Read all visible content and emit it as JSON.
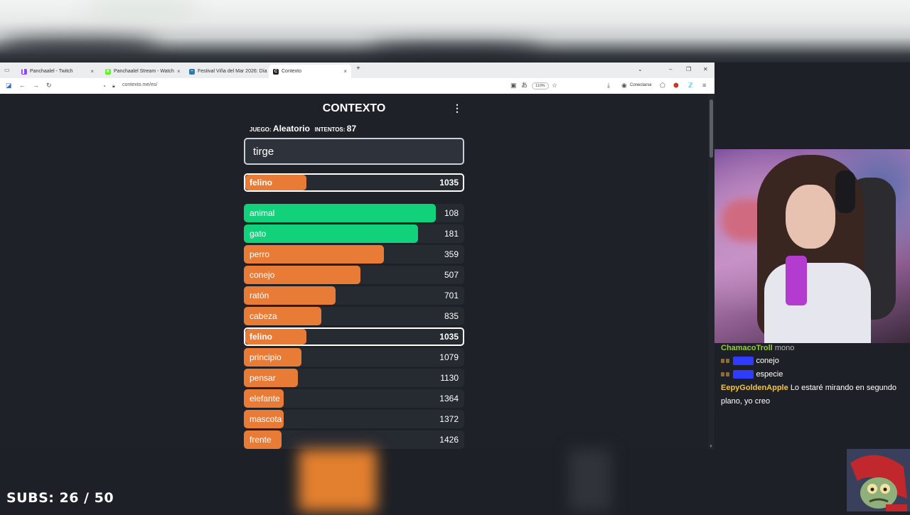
{
  "browser": {
    "tabs": [
      {
        "title": "Panchaalel - Twitch",
        "fav_color": "#9146ff",
        "fav_text": "▌"
      },
      {
        "title": "Panchaalel Stream - Watch",
        "fav_color": "#53fc18",
        "fav_text": "K"
      },
      {
        "title": "Festival Viña del Mar 2026: Día",
        "fav_color": "#2a7ab0",
        "fav_text": "~"
      },
      {
        "title": "Contexto",
        "fav_color": "#222222",
        "fav_text": "C"
      }
    ],
    "url": "contexto.me/es/",
    "zoom": "110%",
    "connect_label": "Conectarse"
  },
  "game": {
    "title": "CONTEXTO",
    "game_label": "JUEGO:",
    "game_value": "Aleatorio",
    "tries_label": "INTENTOS:",
    "tries_value": "87",
    "input_value": "tirge",
    "last_guess": {
      "word": "felino",
      "rank": "1035",
      "fill": 0.28,
      "color": "#e87b35"
    },
    "guesses": [
      {
        "word": "animal",
        "rank": "108",
        "fill": 0.87,
        "color": "#11d17b"
      },
      {
        "word": "gato",
        "rank": "181",
        "fill": 0.79,
        "color": "#11d17b"
      },
      {
        "word": "perro",
        "rank": "359",
        "fill": 0.635,
        "color": "#e87b35"
      },
      {
        "word": "conejo",
        "rank": "507",
        "fill": 0.53,
        "color": "#e87b35"
      },
      {
        "word": "ratón",
        "rank": "701",
        "fill": 0.415,
        "color": "#e87b35"
      },
      {
        "word": "cabeza",
        "rank": "835",
        "fill": 0.35,
        "color": "#e87b35"
      },
      {
        "word": "felino",
        "rank": "1035",
        "fill": 0.28,
        "color": "#e87b35",
        "highlight": true
      },
      {
        "word": "principio",
        "rank": "1079",
        "fill": 0.26,
        "color": "#e87b35"
      },
      {
        "word": "pensar",
        "rank": "1130",
        "fill": 0.245,
        "color": "#e87b35"
      },
      {
        "word": "elefante",
        "rank": "1364",
        "fill": 0.18,
        "color": "#e87b35"
      },
      {
        "word": "mascota",
        "rank": "1372",
        "fill": 0.18,
        "color": "#e87b35"
      },
      {
        "word": "frente",
        "rank": "1426",
        "fill": 0.17,
        "color": "#e87b35"
      }
    ]
  },
  "chat": {
    "messages": [
      {
        "user": "ChamacoTroll",
        "user_color": "#9acd32",
        "text": "mono"
      },
      {
        "user": "········",
        "user_color": "#2f3cff",
        "text": "conejo",
        "badges": true
      },
      {
        "user": "········",
        "user_color": "#2f3cff",
        "text": "especie",
        "badges": true
      },
      {
        "user": "EepyGoldenApple",
        "user_color": "#f4c542",
        "text": "Lo estaré mirando en segundo plano, yo creo"
      }
    ]
  },
  "overlay": {
    "subs_text": "SUBS: 26 / 50"
  }
}
